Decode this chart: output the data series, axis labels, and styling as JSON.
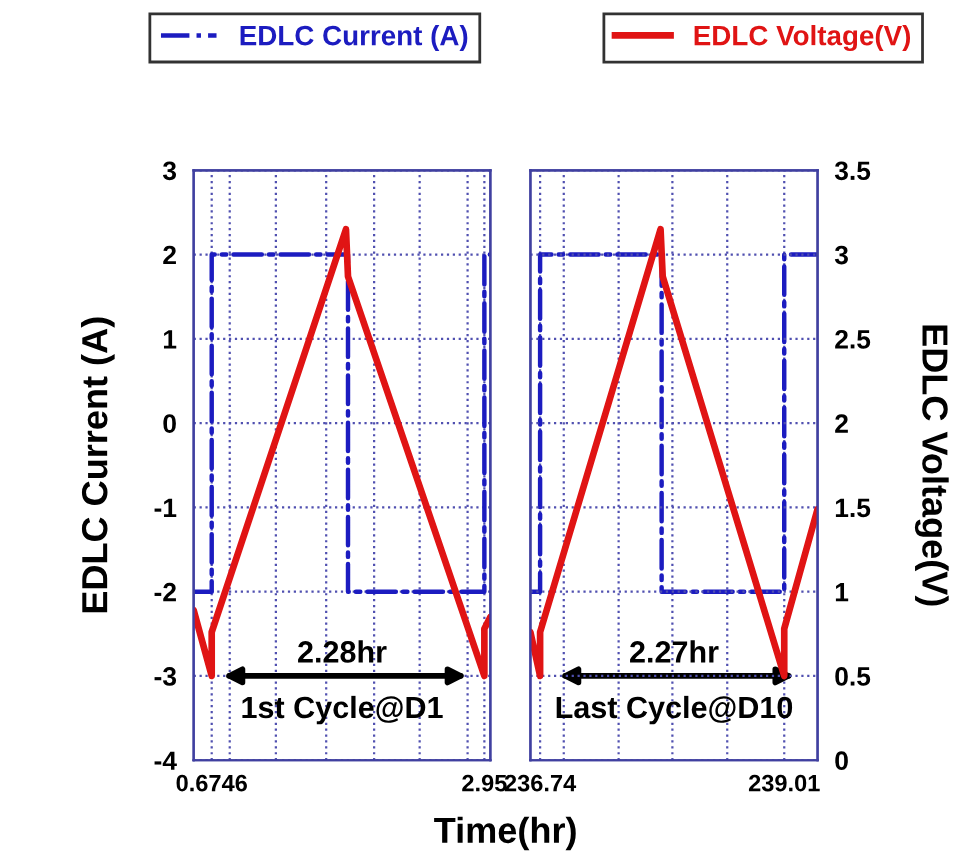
{
  "chart_data": [
    {
      "type": "line",
      "xlabel": "Time(hr)",
      "ylabel": "EDLC Current (A)",
      "legend": "top",
      "grid": true,
      "tick_labels": [
        "x",
        "y"
      ],
      "xlim": [
        0.524,
        3.0
      ],
      "xticks": [
        {
          "value": 0.6746,
          "label": "0.6746"
        },
        {
          "value": 0.825,
          "label": null
        },
        {
          "value": 1.21,
          "label": null
        },
        {
          "value": 1.63,
          "label": null
        },
        {
          "value": 2.03,
          "label": null
        },
        {
          "value": 2.41,
          "label": null
        },
        {
          "value": 2.81,
          "label": null
        },
        {
          "value": 2.95,
          "label": "2.95"
        }
      ],
      "ylim": [
        -4,
        3
      ],
      "yticks": [
        -4,
        -3,
        -2,
        -1,
        0,
        1,
        2,
        3
      ],
      "y2lim": [
        0,
        3.5
      ],
      "series": [
        {
          "name": "EDLC Current (A)",
          "type": "step",
          "axis": "y",
          "color": "#1c1cc0",
          "line_style": "dashdot",
          "x": [
            0.524,
            0.6746,
            1.812,
            2.95,
            3.0
          ],
          "values": [
            -2,
            2,
            -2,
            2,
            2
          ]
        },
        {
          "name": "EDLC Voltage(V)",
          "axis": "y2",
          "color": "#e01414",
          "line_style": "solid",
          "x": [
            0.524,
            0.6746,
            0.6746,
            1.795,
            1.812,
            2.95,
            2.95,
            3.0
          ],
          "values": [
            0.89,
            0.5,
            0.76,
            3.15,
            2.87,
            0.5,
            0.78,
            0.85
          ]
        }
      ],
      "annotations": [
        "2.28hr",
        "1st Cycle@D1"
      ]
    },
    {
      "type": "line",
      "y2label": "EDLC Voltage(V)",
      "grid": true,
      "tick_labels": [
        "x",
        "y2"
      ],
      "xlim": [
        236.65,
        239.32
      ],
      "xticks": [
        {
          "value": 236.74,
          "label": "236.74"
        },
        {
          "value": 236.96,
          "label": null
        },
        {
          "value": 237.47,
          "label": null
        },
        {
          "value": 237.97,
          "label": null
        },
        {
          "value": 238.48,
          "label": null
        },
        {
          "value": 239.01,
          "label": "239.01"
        }
      ],
      "ylim": [
        -4,
        3
      ],
      "y2lim": [
        0,
        3.5
      ],
      "y2ticks": [
        0,
        0.5,
        1,
        1.5,
        2,
        2.5,
        3,
        3.5
      ],
      "series": [
        {
          "type": "step",
          "axis": "y",
          "color": "#1c1cc0",
          "line_style": "dashdot",
          "x": [
            236.65,
            236.74,
            237.87,
            239.01,
            239.32
          ],
          "values": [
            -2,
            2,
            -2,
            2,
            2
          ]
        },
        {
          "axis": "y2",
          "color": "#e01414",
          "line_style": "solid",
          "x": [
            236.65,
            236.74,
            236.74,
            237.86,
            237.88,
            239.01,
            239.01,
            239.32
          ],
          "values": [
            0.76,
            0.5,
            0.76,
            3.15,
            2.87,
            0.5,
            0.78,
            1.49
          ]
        }
      ],
      "annotations": [
        "2.27hr",
        "Last Cycle@D10"
      ]
    }
  ]
}
